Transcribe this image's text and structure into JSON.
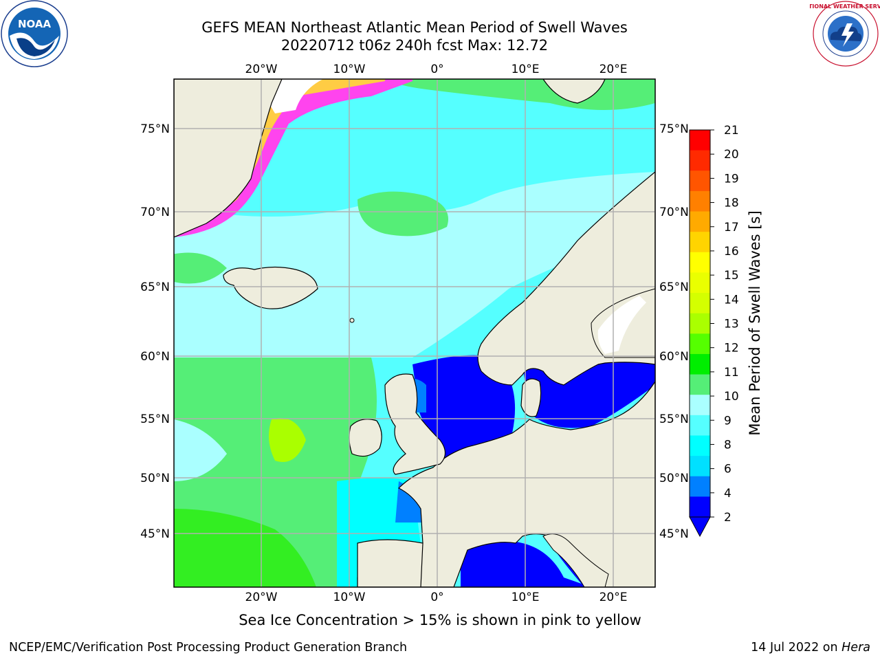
{
  "title": {
    "line1": "GEFS MEAN Northeast Atlantic Mean Period of Swell Waves",
    "line2": "20220712 t06z 240h fcst   Max: 12.72"
  },
  "logos": {
    "left": "noaa-logo",
    "left_text": "NOAA",
    "right": "nws-logo",
    "right_text": "NATIONAL WEATHER SERVICE"
  },
  "map": {
    "lon_labels": [
      "20°W",
      "10°W",
      "0°",
      "10°E",
      "20°E"
    ],
    "lat_labels": [
      "75°N",
      "70°N",
      "65°N",
      "60°N",
      "55°N",
      "50°N",
      "45°N"
    ],
    "colors": {
      "land": "#eeeddd",
      "ice_pink": "#ff44ee",
      "ice_yellow": "#ffcc44",
      "ice_white": "#ffffff",
      "grid": "#b0b0b0"
    }
  },
  "colorbar": {
    "label": "Mean Period of Swell Waves [s]",
    "ticks": [
      "21",
      "20",
      "19",
      "18",
      "17",
      "16",
      "15",
      "14",
      "13",
      "12",
      "11",
      "10",
      "9",
      "8",
      "6",
      "4",
      "2"
    ],
    "colors": [
      "#ff0000",
      "#ff2a00",
      "#ff5500",
      "#ff8000",
      "#ffaa00",
      "#ffd400",
      "#ffff00",
      "#eaff00",
      "#d4ff00",
      "#aaff00",
      "#55ff00",
      "#00ee00",
      "#55ee77",
      "#aaffff",
      "#55ffff",
      "#00ffff",
      "#00e0ff",
      "#0080ff",
      "#0000ff"
    ]
  },
  "note": "Sea Ice Concentration > 15% is shown in pink to yellow",
  "footer": {
    "left": "NCEP/EMC/Verification Post Processing Product Generation Branch",
    "right_prefix": "14 Jul 2022 on ",
    "right_italic": "Hera"
  }
}
